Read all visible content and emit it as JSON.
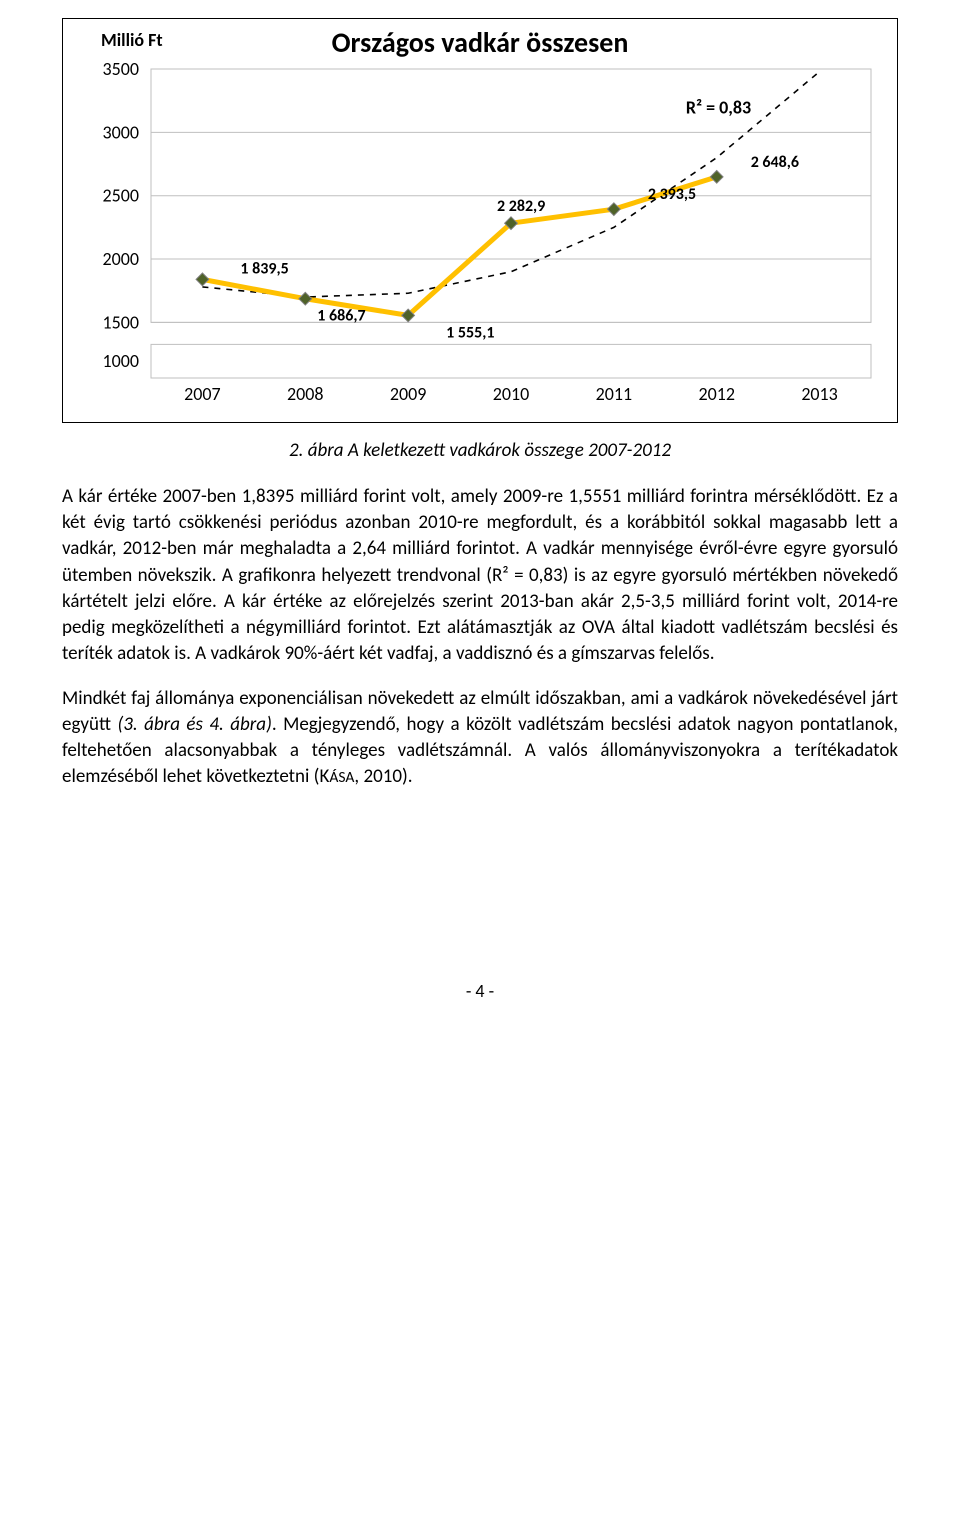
{
  "chart": {
    "type": "line",
    "title": "Országos vadkár összesen",
    "y_axis_title": "Millió Ft",
    "r2_label": "R² = 0,83",
    "x_categories": [
      "2007",
      "2008",
      "2009",
      "2010",
      "2011",
      "2012",
      "2013"
    ],
    "y_ticks": [
      1000,
      1500,
      2000,
      2500,
      3000,
      3500
    ],
    "y_min": 1000,
    "y_max": 3500,
    "series": {
      "values": [
        1839.5,
        1686.7,
        1555.1,
        2282.9,
        2393.5,
        2648.6
      ],
      "labels": [
        "1 839,5",
        "1 686,7",
        "1 555,1",
        "2 282,9",
        "2 393,5",
        "2 648,6"
      ],
      "line_color": "#ffc000",
      "line_width": 5,
      "marker_fill": "#4f6228",
      "marker_stroke": "#7f7f7f",
      "marker_size": 9
    },
    "trendline": {
      "points": [
        [
          0.0,
          1780
        ],
        [
          1.0,
          1700
        ],
        [
          2.0,
          1730
        ],
        [
          3.0,
          1900
        ],
        [
          4.0,
          2250
        ],
        [
          5.0,
          2800
        ],
        [
          6.0,
          3480
        ]
      ],
      "color": "#000000",
      "dash": "6,6",
      "width": 1.6
    },
    "plot_background": "#ffffff",
    "gridline_color": "#bfbfbf",
    "axis_label_fontsize": 18,
    "tick_fontsize": 18,
    "data_label_fontsize": 16,
    "label_font_weight": "700"
  },
  "caption": "2. ábra A keletkezett vadkárok összege 2007-2012",
  "paragraphs": {
    "p1": "A kár értéke 2007-ben 1,8395 milliárd forint volt, amely 2009-re 1,5551 milliárd forintra mérséklődött. Ez a két évig tartó csökkenési periódus azonban 2010-re megfordult, és a korábbitól sokkal magasabb lett a vadkár, 2012-ben már meghaladta a 2,64 milliárd forintot. A vadkár mennyisége évről-évre egyre gyorsuló ütemben növekszik. A grafikonra helyezett trendvonal (R² = 0,83) is az egyre gyorsuló mértékben növekedő kártételt jelzi előre. A kár értéke az előrejelzés szerint 2013-ban akár 2,5-3,5 milliárd forint volt, 2014-re pedig megközelítheti a négymilliárd forintot. Ezt alátámasztják az OVA által kiadott vadlétszám becslési és teríték adatok is. A vadkárok 90%-áért két vadfaj, a vaddisznó és a gímszarvas felelős.",
    "p2_a": "Mindkét faj állománya exponenciálisan növekedett az elmúlt időszakban, ami a vadkárok növekedésével járt együtt ",
    "p2_italic": "(3. ábra és 4. ábra)",
    "p2_b": ". Megjegyzendő, hogy a közölt vadlétszám becslési adatok nagyon pontatlanok, feltehetően alacsonyabbak a tényleges vadlétszámnál. A valós állományviszonyokra a terítékadatok elemzéséből lehet következtetni (K",
    "p2_sc": "ÁSA",
    "p2_c": ", 2010)."
  },
  "page_number": "- 4 -"
}
